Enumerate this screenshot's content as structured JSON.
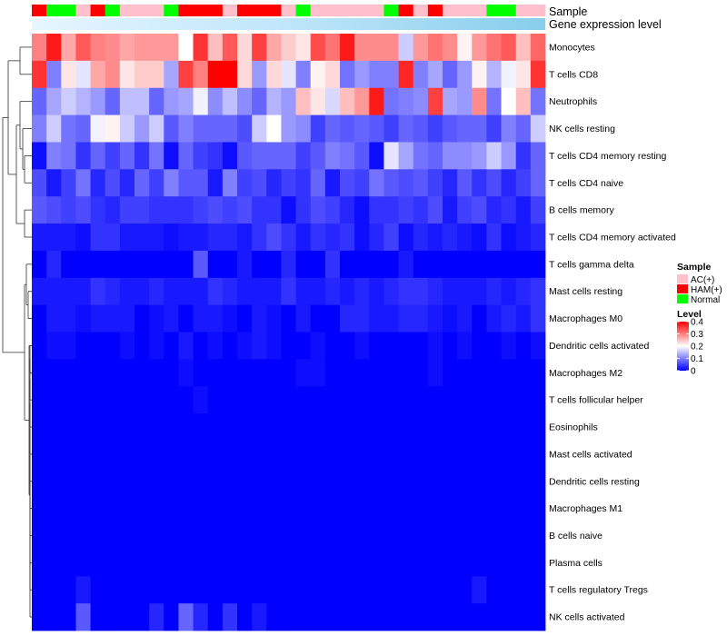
{
  "chart_data": {
    "type": "heatmap",
    "title": "",
    "annotation_rows": [
      "Sample",
      "Gene expression level"
    ],
    "rows": [
      "Monocytes",
      "T cells CD8",
      "Neutrophils",
      "NK cells resting",
      "T cells CD4 memory resting",
      "T cells CD4 naive",
      "B cells memory",
      "T cells CD4 memory activated",
      "T cells gamma delta",
      "Mast cells resting",
      "Macrophages M0",
      "Dendritic cells activated",
      "Macrophages M2",
      "T cells follicular helper",
      "Eosinophils",
      "Mast cells activated",
      "Dendritic cells resting",
      "Macrophages M1",
      "B cells naive",
      "Plasma cells",
      "T cells regulatory  Tregs",
      "NK cells activated"
    ],
    "samples": [
      "HAM(+)",
      "Normal",
      "Normal",
      "AC(+)",
      "HAM(+)",
      "Normal",
      "AC(+)",
      "AC(+)",
      "AC(+)",
      "Normal",
      "HAM(+)",
      "HAM(+)",
      "HAM(+)",
      "AC(+)",
      "HAM(+)",
      "HAM(+)",
      "HAM(+)",
      "AC(+)",
      "Normal",
      "AC(+)",
      "AC(+)",
      "AC(+)",
      "AC(+)",
      "AC(+)",
      "Normal",
      "HAM(+)",
      "AC(+)",
      "HAM(+)",
      "AC(+)",
      "AC(+)",
      "AC(+)",
      "Normal",
      "Normal",
      "AC(+)",
      "AC(+)"
    ],
    "values": [
      [
        0.3,
        0.38,
        0.27,
        0.33,
        0.3,
        0.29,
        0.27,
        0.28,
        0.28,
        0.28,
        0.2,
        0.36,
        0.25,
        0.33,
        0.23,
        0.35,
        0.27,
        0.24,
        0.22,
        0.34,
        0.31,
        0.38,
        0.29,
        0.29,
        0.29,
        0.16,
        0.28,
        0.31,
        0.29,
        0.21,
        0.28,
        0.31,
        0.33,
        0.25,
        0.32
      ],
      [
        0.36,
        0.1,
        0.22,
        0.18,
        0.27,
        0.29,
        0.22,
        0.24,
        0.24,
        0.13,
        0.35,
        0.3,
        0.4,
        0.4,
        0.23,
        0.12,
        0.23,
        0.18,
        0.1,
        0.21,
        0.23,
        0.09,
        0.12,
        0.1,
        0.1,
        0.37,
        0.1,
        0.13,
        0.08,
        0.12,
        0.21,
        0.14,
        0.19,
        0.22,
        0.36
      ],
      [
        0.08,
        0.13,
        0.16,
        0.14,
        0.12,
        0.08,
        0.15,
        0.15,
        0.08,
        0.12,
        0.13,
        0.19,
        0.11,
        0.15,
        0.11,
        0.08,
        0.14,
        0.12,
        0.25,
        0.22,
        0.17,
        0.25,
        0.28,
        0.38,
        0.09,
        0.1,
        0.11,
        0.35,
        0.13,
        0.12,
        0.29,
        0.09,
        0.2,
        0.25,
        0.09
      ],
      [
        0.1,
        0.16,
        0.09,
        0.08,
        0.19,
        0.21,
        0.16,
        0.12,
        0.16,
        0.07,
        0.1,
        0.08,
        0.08,
        0.08,
        0.06,
        0.16,
        0.2,
        0.12,
        0.11,
        0.05,
        0.08,
        0.07,
        0.08,
        0.07,
        0.05,
        0.08,
        0.07,
        0.05,
        0.07,
        0.08,
        0.08,
        0.05,
        0.1,
        0.08,
        0.16
      ],
      [
        0.01,
        0.1,
        0.09,
        0.04,
        0.08,
        0.05,
        0.08,
        0.04,
        0.09,
        0.01,
        0.08,
        0.05,
        0.04,
        0.01,
        0.07,
        0.08,
        0.08,
        0.08,
        0.05,
        0.07,
        0.1,
        0.09,
        0.07,
        0.01,
        0.18,
        0.13,
        0.09,
        0.08,
        0.11,
        0.11,
        0.12,
        0.16,
        0.12,
        0.04,
        0.08
      ],
      [
        0.06,
        0.02,
        0.05,
        0.09,
        0.03,
        0.06,
        0.03,
        0.08,
        0.05,
        0.1,
        0.07,
        0.07,
        0.02,
        0.1,
        0.05,
        0.06,
        0.03,
        0.05,
        0.04,
        0.08,
        0.02,
        0.06,
        0.05,
        0.09,
        0.07,
        0.06,
        0.07,
        0.05,
        0.03,
        0.07,
        0.04,
        0.06,
        0.03,
        0.05,
        0.08
      ],
      [
        0.07,
        0.06,
        0.05,
        0.06,
        0.04,
        0.03,
        0.05,
        0.05,
        0.04,
        0.04,
        0.04,
        0.05,
        0.06,
        0.05,
        0.06,
        0.04,
        0.04,
        0.01,
        0.04,
        0.06,
        0.05,
        0.03,
        0.01,
        0.04,
        0.04,
        0.05,
        0.04,
        0.06,
        0.02,
        0.05,
        0.06,
        0.03,
        0.04,
        0.02,
        0.05
      ],
      [
        0.02,
        0.02,
        0.02,
        0.01,
        0.04,
        0.04,
        0.02,
        0.02,
        0.02,
        0.01,
        0.02,
        0.02,
        0.03,
        0.03,
        0.02,
        0.04,
        0.06,
        0.04,
        0.02,
        0.04,
        0.03,
        0.04,
        0.01,
        0.03,
        0.05,
        0.01,
        0.03,
        0.02,
        0.03,
        0.02,
        0.01,
        0.04,
        0.01,
        0.02,
        0.03
      ],
      [
        0.0,
        0.03,
        0.0,
        0.0,
        0.0,
        0.0,
        0.0,
        0.0,
        0.0,
        0.0,
        0.0,
        0.07,
        0.0,
        0.0,
        0.02,
        0.0,
        0.0,
        0.03,
        0.0,
        0.0,
        0.04,
        0.0,
        0.0,
        0.0,
        0.0,
        0.02,
        0.0,
        0.0,
        0.0,
        0.0,
        0.0,
        0.0,
        0.0,
        0.0,
        0.0
      ],
      [
        0.02,
        0.02,
        0.02,
        0.02,
        0.04,
        0.03,
        0.02,
        0.02,
        0.03,
        0.02,
        0.02,
        0.02,
        0.04,
        0.03,
        0.02,
        0.02,
        0.02,
        0.04,
        0.02,
        0.02,
        0.03,
        0.02,
        0.03,
        0.02,
        0.03,
        0.04,
        0.04,
        0.03,
        0.02,
        0.02,
        0.02,
        0.03,
        0.02,
        0.03,
        0.04
      ],
      [
        0.0,
        0.02,
        0.02,
        0.01,
        0.02,
        0.02,
        0.02,
        0.0,
        0.01,
        0.02,
        0.0,
        0.02,
        0.02,
        0.01,
        0.0,
        0.02,
        0.01,
        0.0,
        0.02,
        0.0,
        0.0,
        0.03,
        0.03,
        0.02,
        0.02,
        0.03,
        0.03,
        0.02,
        0.01,
        0.02,
        0.0,
        0.02,
        0.03,
        0.02,
        0.04
      ],
      [
        0.0,
        0.01,
        0.01,
        0.0,
        0.0,
        0.0,
        0.01,
        0.0,
        0.01,
        0.0,
        0.02,
        0.0,
        0.01,
        0.0,
        0.01,
        0.02,
        0.01,
        0.0,
        0.0,
        0.01,
        0.0,
        0.0,
        0.01,
        0.0,
        0.0,
        0.0,
        0.0,
        0.01,
        0.0,
        0.01,
        0.0,
        0.0,
        0.01,
        0.0,
        0.01
      ],
      [
        0.0,
        0.0,
        0.0,
        0.0,
        0.0,
        0.0,
        0.0,
        0.0,
        0.0,
        0.0,
        0.01,
        0.0,
        0.0,
        0.0,
        0.0,
        0.0,
        0.0,
        0.0,
        0.01,
        0.01,
        0.0,
        0.0,
        0.0,
        0.0,
        0.0,
        0.0,
        0.0,
        0.01,
        0.0,
        0.0,
        0.0,
        0.0,
        0.0,
        0.0,
        0.0
      ],
      [
        0.0,
        0.0,
        0.0,
        0.0,
        0.0,
        0.0,
        0.0,
        0.0,
        0.0,
        0.0,
        0.0,
        0.01,
        0.0,
        0.0,
        0.0,
        0.0,
        0.0,
        0.0,
        0.0,
        0.0,
        0.0,
        0.0,
        0.0,
        0.0,
        0.0,
        0.0,
        0.0,
        0.0,
        0.0,
        0.0,
        0.0,
        0.0,
        0.0,
        0.0,
        0.0
      ],
      [
        0.0,
        0.0,
        0.0,
        0.0,
        0.0,
        0.0,
        0.0,
        0.0,
        0.0,
        0.0,
        0.0,
        0.0,
        0.0,
        0.0,
        0.0,
        0.0,
        0.0,
        0.0,
        0.0,
        0.0,
        0.0,
        0.0,
        0.0,
        0.0,
        0.0,
        0.0,
        0.0,
        0.0,
        0.0,
        0.0,
        0.0,
        0.0,
        0.0,
        0.0,
        0.0
      ],
      [
        0.0,
        0.0,
        0.0,
        0.0,
        0.0,
        0.0,
        0.0,
        0.0,
        0.0,
        0.0,
        0.0,
        0.0,
        0.0,
        0.0,
        0.0,
        0.0,
        0.0,
        0.0,
        0.0,
        0.0,
        0.0,
        0.0,
        0.0,
        0.0,
        0.0,
        0.0,
        0.0,
        0.0,
        0.0,
        0.0,
        0.0,
        0.0,
        0.0,
        0.0,
        0.0
      ],
      [
        0.0,
        0.0,
        0.0,
        0.0,
        0.0,
        0.0,
        0.0,
        0.0,
        0.0,
        0.0,
        0.0,
        0.0,
        0.0,
        0.0,
        0.0,
        0.0,
        0.0,
        0.0,
        0.0,
        0.0,
        0.0,
        0.0,
        0.0,
        0.0,
        0.0,
        0.0,
        0.0,
        0.0,
        0.0,
        0.0,
        0.0,
        0.0,
        0.0,
        0.0,
        0.0
      ],
      [
        0.0,
        0.0,
        0.0,
        0.0,
        0.0,
        0.0,
        0.0,
        0.0,
        0.0,
        0.0,
        0.0,
        0.0,
        0.0,
        0.0,
        0.0,
        0.0,
        0.0,
        0.0,
        0.0,
        0.0,
        0.0,
        0.0,
        0.0,
        0.0,
        0.0,
        0.0,
        0.0,
        0.0,
        0.0,
        0.0,
        0.0,
        0.0,
        0.0,
        0.0,
        0.0
      ],
      [
        0.0,
        0.0,
        0.0,
        0.0,
        0.0,
        0.0,
        0.0,
        0.0,
        0.0,
        0.0,
        0.0,
        0.0,
        0.0,
        0.0,
        0.0,
        0.0,
        0.0,
        0.0,
        0.0,
        0.0,
        0.0,
        0.0,
        0.0,
        0.0,
        0.0,
        0.0,
        0.0,
        0.0,
        0.0,
        0.0,
        0.0,
        0.0,
        0.0,
        0.0,
        0.0
      ],
      [
        0.0,
        0.0,
        0.0,
        0.0,
        0.0,
        0.0,
        0.0,
        0.0,
        0.0,
        0.0,
        0.0,
        0.0,
        0.0,
        0.0,
        0.0,
        0.0,
        0.0,
        0.0,
        0.0,
        0.0,
        0.0,
        0.0,
        0.0,
        0.0,
        0.0,
        0.0,
        0.0,
        0.0,
        0.0,
        0.0,
        0.0,
        0.0,
        0.0,
        0.0,
        0.0
      ],
      [
        0.0,
        0.0,
        0.0,
        0.02,
        0.0,
        0.0,
        0.0,
        0.0,
        0.0,
        0.0,
        0.0,
        0.0,
        0.0,
        0.0,
        0.0,
        0.0,
        0.0,
        0.0,
        0.0,
        0.0,
        0.0,
        0.0,
        0.0,
        0.0,
        0.0,
        0.0,
        0.0,
        0.0,
        0.0,
        0.0,
        0.02,
        0.0,
        0.0,
        0.0,
        0.0
      ],
      [
        0.0,
        0.0,
        0.0,
        0.07,
        0.0,
        0.0,
        0.0,
        0.0,
        0.03,
        0.0,
        0.08,
        0.03,
        0.0,
        0.04,
        0.0,
        0.02,
        0.0,
        0.0,
        0.0,
        0.0,
        0.0,
        0.0,
        0.0,
        0.0,
        0.0,
        0.0,
        0.0,
        0.0,
        0.0,
        0.0,
        0.0,
        0.0,
        0.0,
        0.0,
        0.0
      ]
    ],
    "color_scale": {
      "min": 0,
      "max": 0.4,
      "low": "#0000FF",
      "mid": "#FFFFFF",
      "high": "#FF0000",
      "midpoint": 0.2
    },
    "gene_expression_color": "#87CEEB",
    "legend": {
      "sample_title": "Sample",
      "sample_entries": [
        {
          "label": "AC(+)",
          "color": "#FFC0CB"
        },
        {
          "label": "HAM(+)",
          "color": "#FF0000"
        },
        {
          "label": "Normal",
          "color": "#00FF00"
        }
      ],
      "level_title": "Level",
      "level_ticks": [
        "0.4",
        "0.3",
        "0.2",
        "0.1",
        "0"
      ]
    },
    "dendrogram": "row",
    "grid": false
  }
}
